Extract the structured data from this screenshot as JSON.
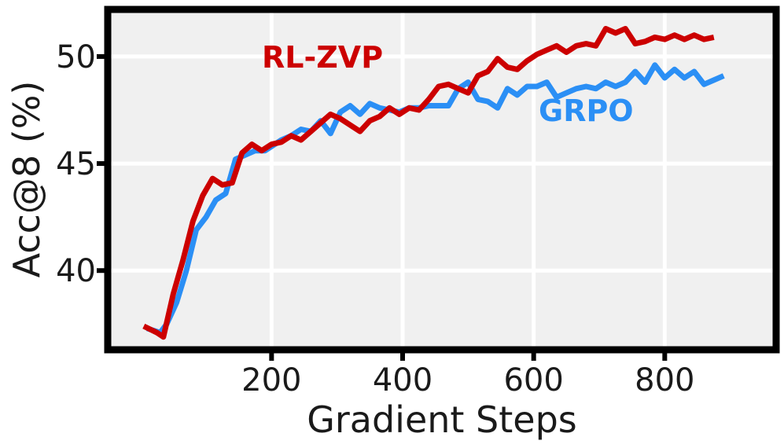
{
  "chart_data": {
    "type": "line",
    "xlabel": "Gradient Steps",
    "ylabel": "Acc@8 (%)",
    "xlim": [
      -50,
      970
    ],
    "ylim": [
      36.3,
      52.2
    ],
    "xticks": [
      200,
      400,
      600,
      800
    ],
    "yticks": [
      40,
      45,
      50
    ],
    "grid": true,
    "legend": "inline labels",
    "series": [
      {
        "name": "GRPO",
        "color": "#2b8ff5",
        "points": [
          [
            10,
            37.3
          ],
          [
            30,
            37.1
          ],
          [
            40,
            37.5
          ],
          [
            55,
            38.5
          ],
          [
            70,
            40.0
          ],
          [
            85,
            41.9
          ],
          [
            100,
            42.5
          ],
          [
            115,
            43.3
          ],
          [
            130,
            43.6
          ],
          [
            145,
            45.2
          ],
          [
            160,
            45.4
          ],
          [
            175,
            45.6
          ],
          [
            190,
            45.6
          ],
          [
            200,
            45.8
          ],
          [
            215,
            46.1
          ],
          [
            230,
            46.3
          ],
          [
            245,
            46.6
          ],
          [
            260,
            46.5
          ],
          [
            275,
            47.0
          ],
          [
            290,
            46.4
          ],
          [
            305,
            47.4
          ],
          [
            320,
            47.7
          ],
          [
            335,
            47.3
          ],
          [
            350,
            47.8
          ],
          [
            365,
            47.6
          ],
          [
            380,
            47.5
          ],
          [
            395,
            47.4
          ],
          [
            410,
            47.6
          ],
          [
            425,
            47.6
          ],
          [
            440,
            47.7
          ],
          [
            455,
            47.7
          ],
          [
            470,
            47.7
          ],
          [
            485,
            48.5
          ],
          [
            500,
            48.8
          ],
          [
            515,
            48.0
          ],
          [
            530,
            47.9
          ],
          [
            545,
            47.6
          ],
          [
            560,
            48.5
          ],
          [
            575,
            48.2
          ],
          [
            590,
            48.6
          ],
          [
            605,
            48.6
          ],
          [
            620,
            48.8
          ],
          [
            635,
            48.1
          ],
          [
            650,
            48.3
          ],
          [
            665,
            48.5
          ],
          [
            680,
            48.6
          ],
          [
            695,
            48.5
          ],
          [
            710,
            48.8
          ],
          [
            725,
            48.6
          ],
          [
            740,
            48.8
          ],
          [
            755,
            49.3
          ],
          [
            770,
            48.8
          ],
          [
            785,
            49.6
          ],
          [
            800,
            49.0
          ],
          [
            815,
            49.4
          ],
          [
            830,
            49.0
          ],
          [
            845,
            49.3
          ],
          [
            860,
            48.7
          ],
          [
            875,
            48.9
          ],
          [
            890,
            49.1
          ]
        ]
      },
      {
        "name": "RL-ZVP",
        "color": "#cc0000",
        "points": [
          [
            5,
            37.4
          ],
          [
            25,
            37.1
          ],
          [
            35,
            36.9
          ],
          [
            50,
            38.9
          ],
          [
            65,
            40.5
          ],
          [
            80,
            42.3
          ],
          [
            95,
            43.5
          ],
          [
            110,
            44.3
          ],
          [
            125,
            44.0
          ],
          [
            140,
            44.1
          ],
          [
            155,
            45.5
          ],
          [
            170,
            45.9
          ],
          [
            185,
            45.6
          ],
          [
            200,
            45.9
          ],
          [
            215,
            46.0
          ],
          [
            230,
            46.3
          ],
          [
            245,
            46.1
          ],
          [
            260,
            46.5
          ],
          [
            275,
            46.9
          ],
          [
            290,
            47.3
          ],
          [
            305,
            47.1
          ],
          [
            320,
            46.8
          ],
          [
            335,
            46.5
          ],
          [
            350,
            47.0
          ],
          [
            365,
            47.2
          ],
          [
            380,
            47.6
          ],
          [
            395,
            47.3
          ],
          [
            410,
            47.6
          ],
          [
            425,
            47.5
          ],
          [
            440,
            48.0
          ],
          [
            455,
            48.6
          ],
          [
            470,
            48.7
          ],
          [
            485,
            48.5
          ],
          [
            500,
            48.3
          ],
          [
            515,
            49.1
          ],
          [
            530,
            49.3
          ],
          [
            545,
            49.9
          ],
          [
            560,
            49.5
          ],
          [
            575,
            49.4
          ],
          [
            590,
            49.8
          ],
          [
            605,
            50.1
          ],
          [
            620,
            50.3
          ],
          [
            635,
            50.5
          ],
          [
            650,
            50.2
          ],
          [
            665,
            50.5
          ],
          [
            680,
            50.6
          ],
          [
            695,
            50.5
          ],
          [
            710,
            51.3
          ],
          [
            725,
            51.1
          ],
          [
            740,
            51.3
          ],
          [
            755,
            50.6
          ],
          [
            770,
            50.7
          ],
          [
            785,
            50.9
          ],
          [
            800,
            50.8
          ],
          [
            815,
            51.0
          ],
          [
            830,
            50.8
          ],
          [
            845,
            51.0
          ],
          [
            860,
            50.8
          ],
          [
            875,
            50.9
          ]
        ]
      }
    ]
  }
}
